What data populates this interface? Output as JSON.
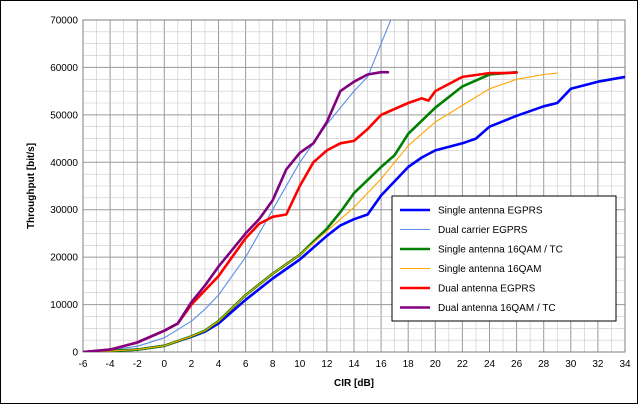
{
  "chart_data": {
    "type": "line",
    "xlabel": "CIR [dB]",
    "ylabel": "Throughput [bit/s]",
    "xlim": [
      -6,
      34
    ],
    "ylim": [
      0,
      70000
    ],
    "x_ticks": [
      -6,
      -4,
      -2,
      0,
      2,
      4,
      6,
      8,
      10,
      12,
      14,
      16,
      18,
      20,
      22,
      24,
      26,
      28,
      30,
      32,
      34
    ],
    "y_ticks": [
      0,
      10000,
      20000,
      30000,
      40000,
      50000,
      60000,
      70000
    ],
    "grid": true,
    "legend_position": "right-center",
    "series": [
      {
        "name": "Single antenna EGPRS",
        "color": "#0000ff",
        "line": "thick",
        "x": [
          -6,
          -4,
          -2,
          0,
          2,
          3,
          4,
          6,
          8,
          10,
          12,
          13,
          14,
          15,
          16,
          18,
          19,
          20,
          22,
          23,
          24,
          26,
          28,
          29,
          30,
          32,
          34
        ],
        "y": [
          0,
          200,
          500,
          1300,
          3200,
          4300,
          6000,
          11000,
          15500,
          19500,
          24500,
          26700,
          28000,
          29000,
          33000,
          39000,
          41000,
          42500,
          44000,
          45000,
          47500,
          49800,
          51800,
          52500,
          55500,
          57000,
          58000
        ]
      },
      {
        "name": "Dual carrier  EGPRS",
        "color": "#5b8ee6",
        "line": "thin",
        "x": [
          -6,
          -4,
          -2,
          0,
          2,
          3,
          4,
          6,
          8,
          10,
          12,
          14,
          15,
          16,
          17
        ],
        "y": [
          0,
          400,
          1200,
          3000,
          6500,
          9000,
          12000,
          20000,
          30000,
          40000,
          48000,
          55000,
          58000,
          65000,
          72000
        ]
      },
      {
        "name": "Single antenna 16QAM / TC",
        "color": "#008000",
        "line": "thick",
        "x": [
          -6,
          -4,
          -2,
          0,
          2,
          3,
          4,
          6,
          8,
          10,
          12,
          13,
          14,
          16,
          17,
          18,
          20,
          22,
          24,
          26
        ],
        "y": [
          0,
          200,
          500,
          1300,
          3300,
          4500,
          6500,
          12000,
          16500,
          20500,
          26000,
          29500,
          33500,
          39000,
          41500,
          46000,
          51500,
          56000,
          58500,
          59000
        ]
      },
      {
        "name": "Single antenna 16QAM",
        "color": "#ffa500",
        "line": "thin",
        "x": [
          -6,
          -4,
          -2,
          0,
          2,
          3,
          4,
          6,
          8,
          10,
          12,
          14,
          16,
          18,
          20,
          22,
          24,
          26,
          28,
          29
        ],
        "y": [
          0,
          200,
          500,
          1300,
          3300,
          4500,
          6500,
          12000,
          16500,
          20500,
          25500,
          30500,
          36500,
          43500,
          48500,
          52000,
          55500,
          57500,
          58500,
          58800
        ]
      },
      {
        "name": "Dual antenna EGPRS",
        "color": "#ff0000",
        "line": "thick",
        "x": [
          -6,
          -4,
          -2,
          0,
          1,
          2,
          4,
          6,
          7,
          8,
          9,
          10,
          11,
          12,
          13,
          14,
          15,
          16,
          18,
          19,
          19.5,
          20,
          22,
          24,
          25,
          26
        ],
        "y": [
          0,
          500,
          2000,
          4500,
          6000,
          10000,
          16000,
          24000,
          27000,
          28500,
          29000,
          35000,
          40000,
          42500,
          44000,
          44500,
          47000,
          50000,
          52500,
          53500,
          53000,
          55000,
          58000,
          58800,
          58800,
          58900
        ]
      },
      {
        "name": "Dual antenna 16QAM / TC",
        "color": "#800080",
        "line": "thick",
        "x": [
          -6,
          -4,
          -2,
          0,
          1,
          2,
          3,
          4,
          6,
          7,
          8,
          9,
          10,
          11,
          12,
          13,
          14,
          15,
          16,
          16.5
        ],
        "y": [
          0,
          500,
          2000,
          4500,
          6000,
          10500,
          14000,
          18000,
          25000,
          28000,
          32000,
          38500,
          42000,
          44000,
          48500,
          55000,
          57000,
          58500,
          59000,
          59000
        ]
      }
    ]
  }
}
